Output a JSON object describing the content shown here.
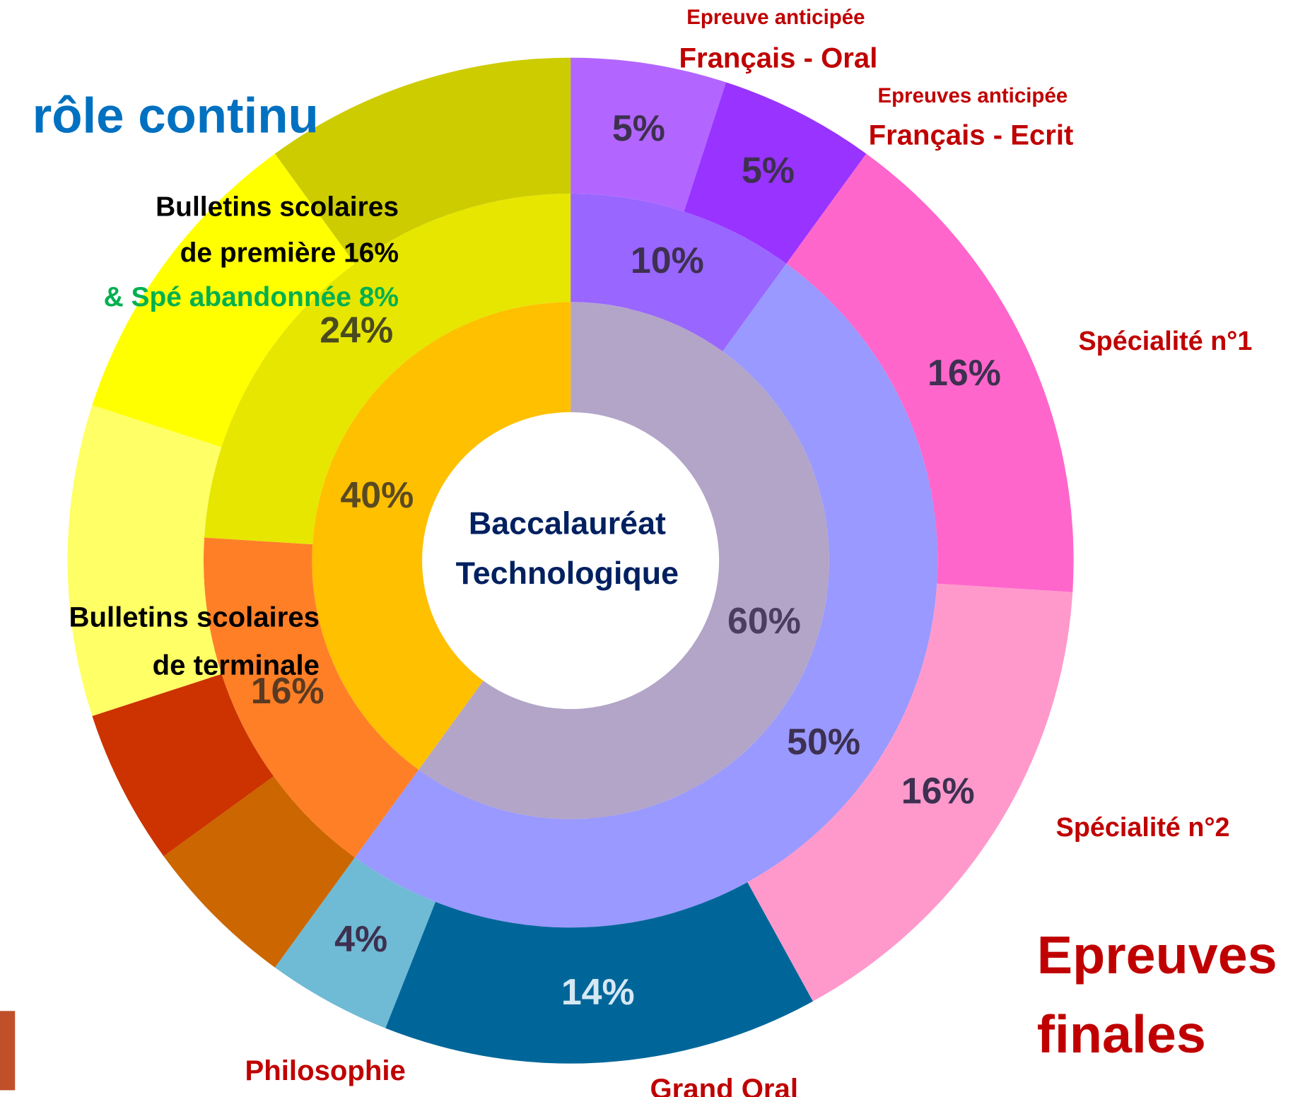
{
  "chart_data": {
    "type": "sunburst",
    "center_text": [
      "Baccalauréat",
      "Technologique"
    ],
    "rings": [
      {
        "values": [
          60,
          40
        ],
        "colors": [
          "#b3a5c8",
          "#ffc000"
        ],
        "value_labels": [
          "60%",
          "40%"
        ],
        "label_colors": [
          "#4b3d5e",
          "#5a4a22"
        ]
      },
      {
        "values": [
          10,
          50,
          16,
          24
        ],
        "colors": [
          "#9966ff",
          "#9999ff",
          "#ff7f27",
          "#e6e600"
        ],
        "value_labels": [
          "10%",
          "50%",
          "16%",
          "24%"
        ],
        "label_colors": [
          "#3d3050",
          "#3d3050",
          "#5a3a22",
          "#4a4a20"
        ]
      },
      {
        "values": [
          5,
          5,
          16,
          16,
          14,
          4,
          5,
          5,
          10,
          10,
          10
        ],
        "colors": [
          "#b266ff",
          "#9933ff",
          "#ff66cc",
          "#ff99cc",
          "#006699",
          "#6fbad4",
          "#cc6600",
          "#cc3300",
          "#ffff66",
          "#ffff00",
          "#cccc00"
        ],
        "value_labels": [
          "5%",
          "5%",
          "16%",
          "16%",
          "14%",
          "4%",
          null,
          null,
          null,
          null,
          null
        ],
        "label_colors": [
          "#3d3050",
          "#3d3050",
          "#3d3050",
          "#3d3050",
          "#d6e8f4",
          "#3d3050",
          null,
          null,
          null,
          null,
          null
        ]
      }
    ],
    "annotations": [
      "Epreuve anticipée",
      "Français - Oral",
      "Epreuves anticipée",
      "Français - Ecrit",
      "Spécialité n°1",
      "Spécialité n°2",
      "Epreuves",
      "finales",
      "Grand Oral",
      "Philosophie",
      "rôle continu",
      "Bulletins scolaires",
      "de première 16%",
      "& Spé abandonnée 8%",
      "Bulletins scolaires",
      "de terminale"
    ]
  }
}
